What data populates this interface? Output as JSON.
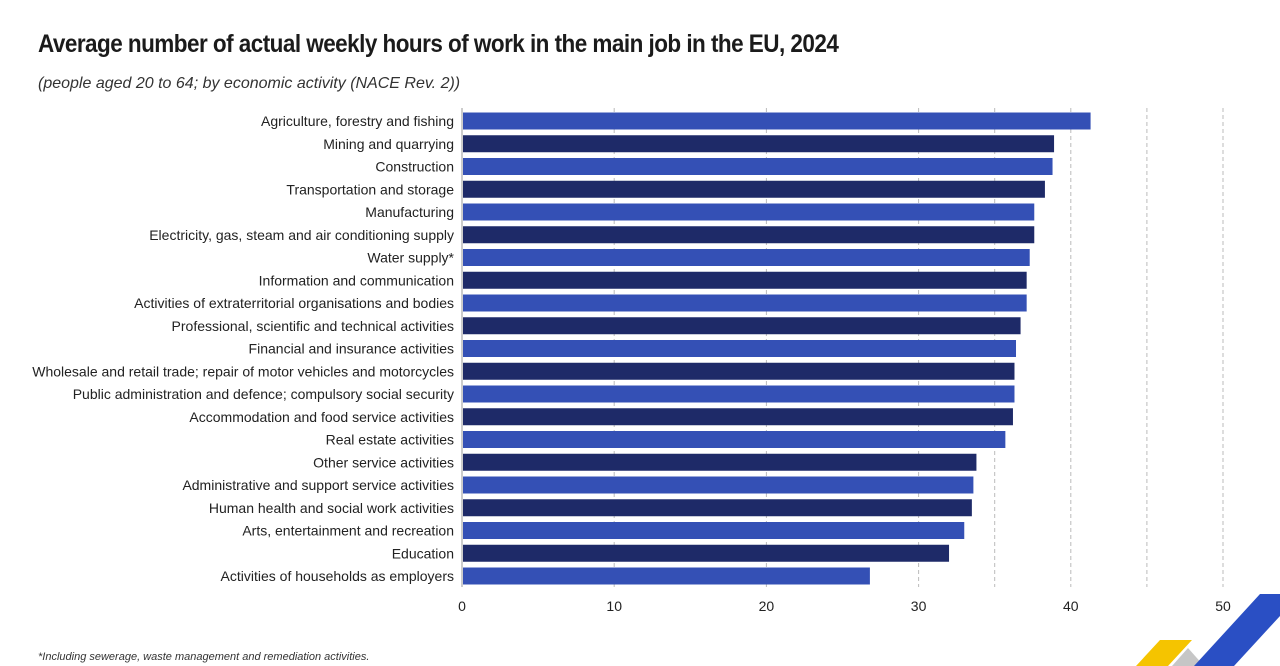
{
  "title": "Average number of actual weekly hours of work in the main job in the EU, 2024",
  "subtitle": "(people aged 20 to 64; by economic activity (NACE Rev. 2))",
  "footnote": "*Including sewerage, waste management and remediation activities.",
  "colors": {
    "bar_light": "#3450b5",
    "bar_dark": "#1e2a68",
    "grid": "#bbbbbb",
    "logo_yellow": "#f5c400",
    "logo_blue": "#2a4fc4",
    "logo_grey": "#c6c6c6"
  },
  "logo": {
    "icon": "eurostat-logo-icon"
  },
  "chart_data": {
    "type": "bar",
    "orientation": "horizontal",
    "title": "Average number of actual weekly hours of work in the main job in the EU, 2024",
    "subtitle": "(people aged 20 to 64; by economic activity (NACE Rev. 2))",
    "xlabel": "",
    "ylabel": "",
    "xlim": [
      0,
      50
    ],
    "xticks": [
      0,
      10,
      20,
      30,
      40,
      50
    ],
    "grid": "vertical-dashed",
    "legend": "none",
    "categories": [
      "Agriculture, forestry and fishing",
      "Mining and quarrying",
      "Construction",
      "Transportation and storage",
      "Manufacturing",
      "Electricity, gas, steam and air conditioning supply",
      "Water supply*",
      "Information and communication",
      "Activities of extraterritorial organisations and bodies",
      "Professional, scientific and technical activities",
      "Financial and insurance activities",
      "Wholesale and retail trade; repair of motor vehicles and motorcycles",
      "Public administration and defence; compulsory social security",
      "Accommodation and food service activities",
      "Real estate activities",
      "Other service activities",
      "Administrative and support service activities",
      "Human health and social work activities",
      "Arts, entertainment and recreation",
      "Education",
      "Activities of households as employers"
    ],
    "values": [
      41.3,
      38.9,
      38.8,
      38.3,
      37.6,
      37.6,
      37.3,
      37.1,
      37.1,
      36.7,
      36.4,
      36.3,
      36.3,
      36.2,
      35.7,
      33.8,
      33.6,
      33.5,
      33.0,
      32.0,
      26.8
    ],
    "bar_shades": [
      "light",
      "dark",
      "light",
      "dark",
      "light",
      "dark",
      "light",
      "dark",
      "light",
      "dark",
      "light",
      "dark",
      "light",
      "dark",
      "light",
      "dark",
      "light",
      "dark",
      "light",
      "dark",
      "light"
    ]
  }
}
